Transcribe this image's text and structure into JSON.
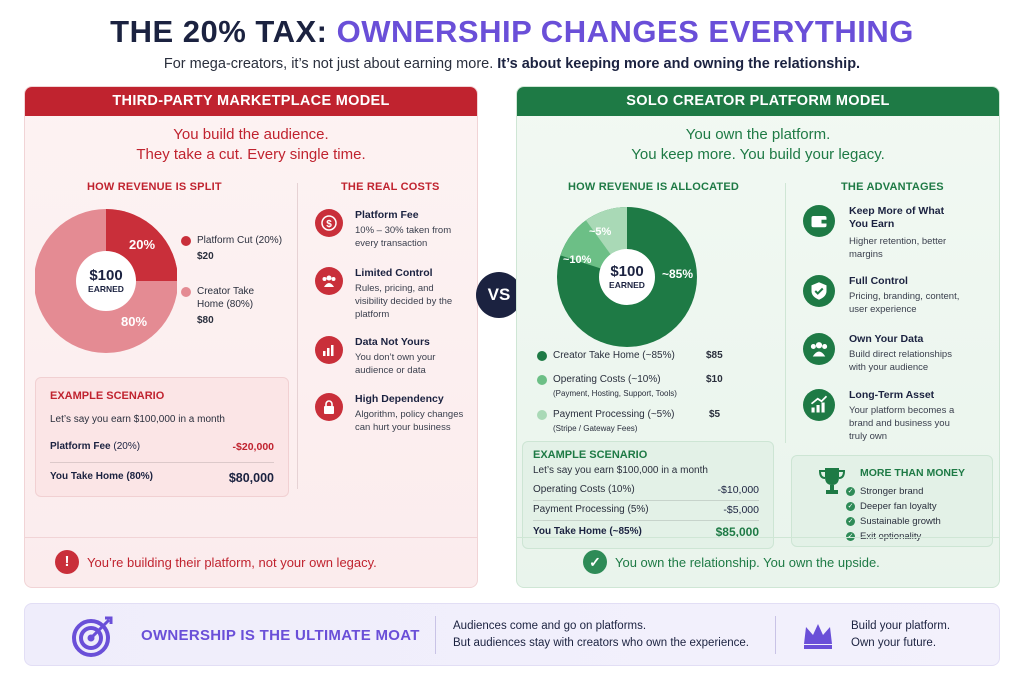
{
  "header": {
    "title_part1": "THE 20% TAX:",
    "title_part2": "OWNERSHIP CHANGES EVERYTHING",
    "subtitle_part1": "For mega-creators, it’s not just about earning more.",
    "subtitle_part2": "It’s about keeping more and owning the relationship."
  },
  "left": {
    "heading": "THIRD-PARTY MARKETPLACE MODEL",
    "tagline_line1": "You build the audience.",
    "tagline_line2": "They take a cut. Every single time.",
    "revenue_heading": "HOW REVENUE IS SPLIT",
    "pie_center_amount": "$100",
    "pie_center_label": "EARNED",
    "slice_pct_platform": "20%",
    "slice_pct_creator": "80%",
    "legend": [
      {
        "label": "Platform Cut (20%)",
        "value": "$20",
        "color": "#c92f3a"
      },
      {
        "label": "Creator Take Home (80%)",
        "value": "$80",
        "color": "#e48b93"
      }
    ],
    "costs_heading": "THE REAL COSTS",
    "costs": [
      {
        "title": "Platform Fee",
        "desc": "10% – 30% taken from every transaction",
        "icon": "dollar-icon"
      },
      {
        "title": "Limited Control",
        "desc": "Rules, pricing, and visibility decided by the platform",
        "icon": "people-icon"
      },
      {
        "title": "Data Not Yours",
        "desc": "You don’t own your audience or data",
        "icon": "chart-icon"
      },
      {
        "title": "High Dependency",
        "desc": "Algorithm, policy changes can hurt your business",
        "icon": "lock-icon"
      }
    ],
    "scenario": {
      "heading": "EXAMPLE SCENARIO",
      "intro": "Let’s say you earn $100,000 in a month",
      "row1_label": "Platform Fee",
      "row1_pct": "(20%)",
      "row1_value": "-$20,000",
      "row2_label": "You Take Home (80%)",
      "row2_value": "$80,000"
    },
    "footer": "You’re building their platform, not your own legacy."
  },
  "vs_label": "VS",
  "right": {
    "heading": "SOLO CREATOR PLATFORM MODEL",
    "tagline_line1": "You own the platform.",
    "tagline_line2": "You keep more. You build your legacy.",
    "revenue_heading": "HOW REVENUE IS ALLOCATED",
    "pie_center_amount": "$100",
    "pie_center_label": "EARNED",
    "slice_pct_creator": "~85%",
    "slice_pct_ops": "~10%",
    "slice_pct_pay": "~5%",
    "legend": [
      {
        "label": "Creator Take Home (~85%)",
        "sub": "",
        "value": "$85",
        "color": "#1e7a45"
      },
      {
        "label": "Operating Costs (~10%)",
        "sub": "(Payment, Hosting, Support, Tools)",
        "value": "$10",
        "color": "#6cbf86"
      },
      {
        "label": "Payment Processing (~5%)",
        "sub": "(Stripe / Gateway Fees)",
        "value": "$5",
        "color": "#a9d9b6"
      }
    ],
    "advantages_heading": "THE ADVANTAGES",
    "advantages": [
      {
        "title": "Keep More of What You Earn",
        "desc": "Higher retention, better margins",
        "icon": "wallet-icon"
      },
      {
        "title": "Full Control",
        "desc": "Pricing, branding, content, user experience",
        "icon": "shield-check-icon"
      },
      {
        "title": "Own Your Data",
        "desc": "Build direct relationships with your audience",
        "icon": "people-icon"
      },
      {
        "title": "Long-Term Asset",
        "desc": "Your platform becomes a brand and business you truly own",
        "icon": "growth-chart-icon"
      }
    ],
    "scenario": {
      "heading": "EXAMPLE SCENARIO",
      "intro": "Let’s say you earn $100,000 in a month",
      "row1_label": "Operating Costs (10%)",
      "row1_value": "-$10,000",
      "row2_label": "Payment Processing (5%)",
      "row2_value": "-$5,000",
      "row3_label": "You Take Home (~85%)",
      "row3_value": "$85,000"
    },
    "more": {
      "heading": "MORE THAN MONEY",
      "items": [
        "Stronger brand",
        "Deeper fan loyalty",
        "Sustainable growth",
        "Exit optionality"
      ]
    },
    "footer": "You own the relationship. You own the upside."
  },
  "bottom": {
    "moat": "OWNERSHIP IS THE ULTIMATE MOAT",
    "middle_line1": "Audiences come and go on platforms.",
    "middle_line2": "But audiences stay with creators who own the experience.",
    "right_line1": "Build your platform.",
    "right_line2": "Own your future."
  },
  "colors": {
    "red": "#c0232f",
    "green": "#1e7a45",
    "purple": "#6a4fd8",
    "navy": "#1b2240"
  }
}
